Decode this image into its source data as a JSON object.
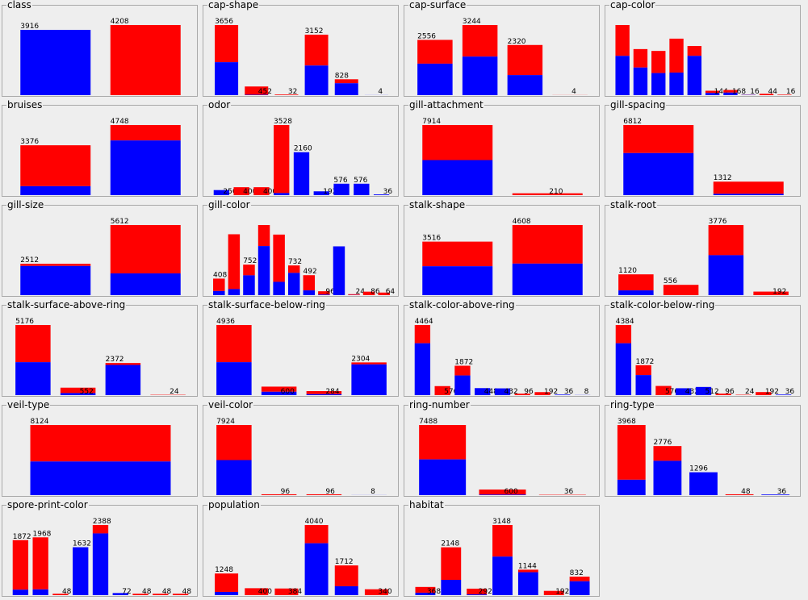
{
  "colors": {
    "first_class": "#0000ff",
    "second_class": "#ff0000"
  },
  "chart_data": [
    {
      "type": "bar",
      "stacked": true,
      "title": "class",
      "counts": [
        3916,
        4208
      ],
      "blue_fraction": [
        1,
        0
      ]
    },
    {
      "type": "bar",
      "stacked": true,
      "title": "cap-shape",
      "counts": [
        3656,
        452,
        32,
        3152,
        828,
        4
      ],
      "blue_fraction": [
        0.47,
        0.05,
        0,
        0.49,
        0.75,
        1
      ]
    },
    {
      "type": "bar",
      "stacked": true,
      "title": "cap-surface",
      "counts": [
        2556,
        3244,
        2320,
        4
      ],
      "blue_fraction": [
        0.57,
        0.55,
        0.4,
        0
      ]
    },
    {
      "type": "bar",
      "stacked": true,
      "title": "cap-color",
      "counts": [
        2284,
        1500,
        1440,
        1840,
        1600,
        144,
        168,
        16,
        44,
        16
      ],
      "blue_fraction": [
        0.56,
        0.6,
        0.5,
        0.4,
        0.8,
        0.5,
        0.5,
        0.5,
        0,
        0
      ],
      "labels": [
        "",
        "",
        "",
        "",
        "",
        "144",
        "168",
        "16",
        "44",
        "16"
      ]
    },
    {
      "type": "bar",
      "stacked": true,
      "title": "bruises",
      "counts": [
        3376,
        4748
      ],
      "blue_fraction": [
        0.18,
        0.78
      ]
    },
    {
      "type": "bar",
      "stacked": true,
      "title": "odor",
      "counts": [
        256,
        400,
        400,
        3528,
        2160,
        192,
        576,
        576,
        36
      ],
      "blue_fraction": [
        1,
        0,
        0,
        0.03,
        1,
        1,
        1,
        1,
        1
      ]
    },
    {
      "type": "bar",
      "stacked": true,
      "title": "gill-attachment",
      "counts": [
        7914,
        210
      ],
      "blue_fraction": [
        0.5,
        0
      ]
    },
    {
      "type": "bar",
      "stacked": true,
      "title": "gill-spacing",
      "counts": [
        6812,
        1312
      ],
      "blue_fraction": [
        0.6,
        0.1
      ]
    },
    {
      "type": "bar",
      "stacked": true,
      "title": "gill-size",
      "counts": [
        2512,
        5612
      ],
      "blue_fraction": [
        0.93,
        0.31
      ]
    },
    {
      "type": "bar",
      "stacked": true,
      "title": "gill-color",
      "counts": [
        408,
        1500,
        752,
        1728,
        1492,
        732,
        492,
        96,
        1202,
        24,
        86,
        64
      ],
      "blue_fraction": [
        0.25,
        0.1,
        0.65,
        0.7,
        0.22,
        0.75,
        0.24,
        0.15,
        1,
        0.15,
        0,
        0
      ],
      "labels": [
        "408",
        "",
        "752",
        "",
        "",
        "732",
        "492",
        "96",
        "",
        "24",
        "86",
        "64"
      ]
    },
    {
      "type": "bar",
      "stacked": true,
      "title": "stalk-shape",
      "counts": [
        3516,
        4608
      ],
      "blue_fraction": [
        0.54,
        0.45
      ]
    },
    {
      "type": "bar",
      "stacked": true,
      "title": "stalk-root",
      "counts": [
        1120,
        556,
        3776,
        192
      ],
      "blue_fraction": [
        0.23,
        0,
        0.57,
        0
      ]
    },
    {
      "type": "bar",
      "stacked": true,
      "title": "stalk-surface-above-ring",
      "counts": [
        5176,
        552,
        2372,
        24
      ],
      "blue_fraction": [
        0.47,
        0.28,
        0.94,
        0
      ]
    },
    {
      "type": "bar",
      "stacked": true,
      "title": "stalk-surface-below-ring",
      "counts": [
        4936,
        600,
        284,
        2304
      ],
      "blue_fraction": [
        0.47,
        0.4,
        0.25,
        0.94
      ]
    },
    {
      "type": "bar",
      "stacked": true,
      "title": "stalk-color-above-ring",
      "counts": [
        4464,
        576,
        1872,
        448,
        432,
        96,
        192,
        36,
        8
      ],
      "blue_fraction": [
        0.74,
        0,
        0.67,
        1,
        1,
        0,
        0,
        1,
        1
      ]
    },
    {
      "type": "bar",
      "stacked": true,
      "title": "stalk-color-below-ring",
      "counts": [
        4384,
        1872,
        576,
        432,
        512,
        96,
        24,
        192,
        36
      ],
      "blue_fraction": [
        0.74,
        0.67,
        0,
        1,
        1,
        0,
        0,
        0,
        1
      ]
    },
    {
      "type": "bar",
      "stacked": true,
      "title": "veil-type",
      "counts": [
        8124
      ],
      "blue_fraction": [
        0.48
      ]
    },
    {
      "type": "bar",
      "stacked": true,
      "title": "veil-color",
      "counts": [
        7924,
        96,
        96,
        8
      ],
      "blue_fraction": [
        0.5,
        0,
        0,
        1
      ]
    },
    {
      "type": "bar",
      "stacked": true,
      "title": "ring-number",
      "counts": [
        7488,
        600,
        36
      ],
      "blue_fraction": [
        0.51,
        0.1,
        0
      ]
    },
    {
      "type": "bar",
      "stacked": true,
      "title": "ring-type",
      "counts": [
        3968,
        2776,
        1296,
        48,
        36
      ],
      "blue_fraction": [
        0.22,
        0.7,
        1,
        0,
        1
      ]
    },
    {
      "type": "bar",
      "stacked": true,
      "title": "spore-print-color",
      "counts": [
        1872,
        1968,
        48,
        1632,
        2388,
        72,
        48,
        48,
        48
      ],
      "blue_fraction": [
        0.1,
        0.1,
        0,
        1,
        0.88,
        1,
        0,
        0,
        0
      ]
    },
    {
      "type": "bar",
      "stacked": true,
      "title": "population",
      "counts": [
        1248,
        400,
        384,
        4040,
        1712,
        340
      ],
      "blue_fraction": [
        0.15,
        0,
        0,
        0.74,
        0.3,
        0
      ]
    },
    {
      "type": "bar",
      "stacked": true,
      "title": "habitat",
      "counts": [
        368,
        2148,
        292,
        3148,
        1144,
        192,
        832
      ],
      "blue_fraction": [
        0.3,
        0.32,
        0.12,
        0.55,
        0.9,
        0,
        0.75
      ]
    }
  ]
}
